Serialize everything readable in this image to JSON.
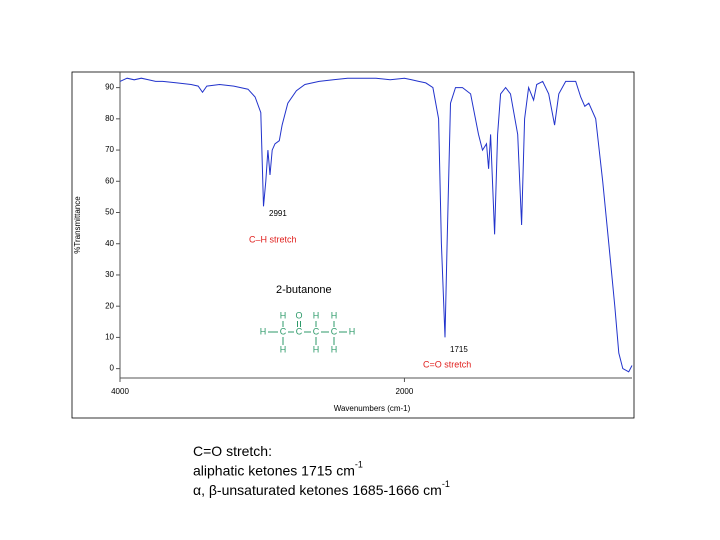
{
  "chart_data": {
    "type": "line",
    "x_label": "Wavenumbers (cm-1)",
    "y_label": "%Transmittance",
    "x": [
      4000,
      3950,
      3900,
      3850,
      3800,
      3750,
      3700,
      3600,
      3500,
      3450,
      3420,
      3390,
      3300,
      3200,
      3100,
      3050,
      3010,
      2991,
      2975,
      2960,
      2945,
      2930,
      2910,
      2880,
      2860,
      2820,
      2760,
      2700,
      2600,
      2500,
      2400,
      2300,
      2200,
      2100,
      2000,
      1950,
      1900,
      1850,
      1800,
      1760,
      1740,
      1715,
      1700,
      1676,
      1641,
      1592,
      1535,
      1479,
      1451,
      1423,
      1408,
      1394,
      1366,
      1345,
      1324,
      1289,
      1254,
      1204,
      1176,
      1155,
      1127,
      1092,
      1070,
      1028,
      986,
      944,
      915,
      866,
      796,
      761,
      732,
      704,
      655,
      606,
      563,
      521,
      493,
      465,
      423,
      400
    ],
    "series": [
      {
        "color": "#2233cc",
        "values": [
          92,
          93,
          92.5,
          93,
          92.5,
          92,
          92,
          91.5,
          91,
          90.5,
          88.5,
          90.5,
          91,
          90.5,
          89.5,
          87,
          82,
          52,
          60,
          70,
          62,
          70,
          72,
          73,
          78,
          85,
          89,
          91,
          92,
          92.5,
          93,
          93,
          93,
          92.5,
          93,
          92.5,
          92,
          91.5,
          90,
          80,
          40,
          10,
          40,
          85,
          90,
          90,
          88,
          75,
          70,
          72,
          64,
          75,
          43,
          75,
          88,
          90,
          88,
          75,
          46,
          80,
          90,
          86,
          91,
          92,
          88,
          78,
          88,
          92,
          92,
          87,
          84,
          85,
          80,
          60,
          40,
          20,
          5,
          0,
          -1,
          1
        ]
      }
    ],
    "xlim": [
      4000,
      400
    ],
    "xticks": [
      4000,
      2000
    ],
    "ylim": [
      -3,
      95
    ],
    "yticks": [
      0,
      10,
      20,
      30,
      40,
      50,
      60,
      70,
      80,
      90
    ],
    "annotations": [
      {
        "text": "2991",
        "color": "#000000"
      },
      {
        "text": "C–H stretch",
        "color": "#e0201e"
      },
      {
        "text": "2-butanone",
        "color": "#000000"
      },
      {
        "text": "1715",
        "color": "#000000"
      },
      {
        "text": "C=O stretch",
        "color": "#e0201e"
      }
    ],
    "structure": {
      "color": "#2e9a6a",
      "atoms": [
        "H",
        "O",
        "H",
        "H",
        "H",
        "C",
        "C",
        "C",
        "C",
        "H",
        "H",
        "H",
        "H"
      ]
    }
  },
  "caption": {
    "lines": [
      {
        "text": "C=O stretch:"
      },
      {
        "text": "aliphatic ketones 1715 cm",
        "sup": "-1"
      },
      {
        "text": "α, β-unsaturated ketones 1685-1666 cm",
        "sup": "-1"
      }
    ]
  }
}
